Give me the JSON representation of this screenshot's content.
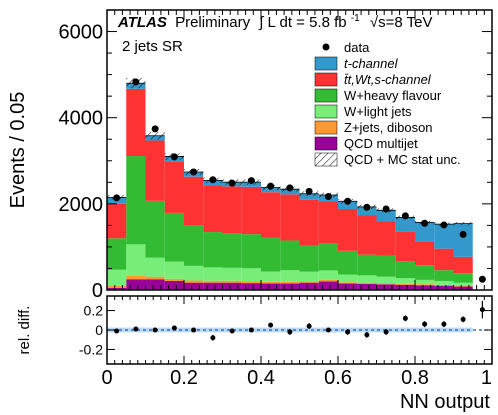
{
  "chart_data": [
    {
      "type": "area",
      "title": "",
      "header": {
        "atlas": "ATLAS",
        "preliminary": "Preliminary",
        "lumi_prefix": "∫ L dt = 5.8 fb",
        "lumi_sup": "-1",
        "energy": "√s=8 TeV"
      },
      "region_label": "2 jets SR",
      "xlabel": "",
      "ylabel": "Events / 0.05",
      "xlim": [
        0,
        1
      ],
      "ylim": [
        0,
        6500
      ],
      "yticks": [
        0,
        2000,
        4000,
        6000
      ],
      "ytick_labels": [
        "0",
        "2000",
        "4000",
        "6000"
      ],
      "x_edges": [
        0,
        0.05,
        0.1,
        0.15,
        0.2,
        0.25,
        0.3,
        0.35,
        0.4,
        0.45,
        0.5,
        0.55,
        0.6,
        0.65,
        0.7,
        0.75,
        0.8,
        0.85,
        0.9,
        0.95,
        1.0
      ],
      "stack_order_bottom_to_top": [
        "QCD multijet",
        "Z+jets, diboson",
        "W+light jets",
        "W+heavy flavour",
        "tt,Wt,s-channel",
        "t-channel"
      ],
      "series": [
        {
          "name": "t-channel",
          "color": "#3399cc",
          "values": [
            150,
            130,
            110,
            110,
            110,
            110,
            100,
            110,
            110,
            120,
            140,
            150,
            180,
            190,
            260,
            330,
            450,
            570,
            770,
            0
          ]
        },
        {
          "name": "t̄t,Wt,s-channel",
          "color": "#ff3333",
          "values": [
            800,
            1560,
            1400,
            1200,
            1130,
            1090,
            1090,
            1100,
            1060,
            1070,
            1070,
            980,
            970,
            920,
            790,
            690,
            540,
            500,
            380,
            0
          ]
        },
        {
          "name": "W+heavy flavour",
          "color": "#33bb33",
          "values": [
            730,
            2050,
            1320,
            1130,
            940,
            820,
            800,
            790,
            780,
            690,
            600,
            620,
            550,
            480,
            490,
            390,
            340,
            250,
            220,
            0
          ]
        },
        {
          "name": "W+light jets",
          "color": "#77ee77",
          "values": [
            370,
            720,
            440,
            400,
            340,
            310,
            300,
            300,
            240,
            270,
            220,
            220,
            180,
            170,
            150,
            130,
            100,
            90,
            70,
            0
          ]
        },
        {
          "name": "Z+jets, diboson",
          "color": "#ff9933",
          "values": [
            50,
            90,
            60,
            50,
            50,
            45,
            45,
            45,
            40,
            40,
            35,
            35,
            30,
            30,
            30,
            25,
            25,
            20,
            20,
            0
          ]
        },
        {
          "name": "QCD multijet",
          "color": "#990099",
          "values": [
            50,
            250,
            250,
            210,
            170,
            170,
            170,
            160,
            150,
            150,
            170,
            200,
            150,
            140,
            130,
            120,
            110,
            100,
            80,
            0
          ]
        }
      ],
      "data": {
        "name": "data",
        "x": [
          0.025,
          0.075,
          0.125,
          0.175,
          0.225,
          0.275,
          0.325,
          0.375,
          0.425,
          0.475,
          0.525,
          0.575,
          0.625,
          0.675,
          0.725,
          0.775,
          0.825,
          0.875,
          0.925,
          0.975
        ],
        "y": [
          2140,
          4830,
          3740,
          3090,
          2740,
          2560,
          2480,
          2540,
          2410,
          2370,
          2290,
          2170,
          2060,
          1920,
          1880,
          1720,
          1550,
          1510,
          1290,
          250
        ],
        "err": [
          46,
          70,
          61,
          56,
          52,
          51,
          50,
          50,
          49,
          49,
          48,
          47,
          45,
          44,
          43,
          41,
          39,
          39,
          36,
          16
        ]
      },
      "uncertainty": {
        "name": "QCD + MC stat unc.",
        "hatch": true,
        "relative": 0.025
      },
      "legend": {
        "placement": "top-right",
        "entries": [
          {
            "label": "data",
            "style": "marker"
          },
          {
            "label": "t-channel",
            "style": "fill",
            "color": "#3399cc"
          },
          {
            "label": "t̄t,Wt,s-channel",
            "style": "fill",
            "color": "#ff3333"
          },
          {
            "label": "W+heavy flavour",
            "style": "fill",
            "color": "#33bb33"
          },
          {
            "label": "W+light jets",
            "style": "fill",
            "color": "#77ee77"
          },
          {
            "label": "Z+jets, diboson",
            "style": "fill",
            "color": "#ff9933"
          },
          {
            "label": "QCD multijet",
            "style": "fill",
            "color": "#990099"
          },
          {
            "label": "QCD + MC stat unc.",
            "style": "hatch"
          }
        ]
      }
    },
    {
      "type": "scatter",
      "title": "",
      "xlabel": "NN output",
      "ylabel": "rel. diff.",
      "xlim": [
        0,
        1
      ],
      "ylim": [
        -0.35,
        0.35
      ],
      "xticks": [
        0,
        0.2,
        0.4,
        0.6,
        0.8,
        1
      ],
      "xtick_labels": [
        "0",
        "0.2",
        "0.4",
        "0.6",
        "0.8",
        "1"
      ],
      "yticks": [
        -0.2,
        0,
        0.2
      ],
      "ytick_labels": [
        "-0.2",
        "0",
        "0.2"
      ],
      "band_color": "#bcd9f2",
      "x": [
        0.025,
        0.075,
        0.125,
        0.175,
        0.225,
        0.275,
        0.325,
        0.375,
        0.425,
        0.475,
        0.525,
        0.575,
        0.625,
        0.675,
        0.725,
        0.775,
        0.825,
        0.875,
        0.925,
        0.975
      ],
      "y": [
        -0.01,
        0.01,
        0.0,
        0.02,
        0.0,
        -0.08,
        -0.01,
        0.0,
        0.05,
        -0.02,
        0.04,
        0.0,
        -0.02,
        -0.05,
        -0.02,
        0.12,
        0.06,
        0.06,
        0.11,
        0.21
      ],
      "err": [
        0.02,
        0.02,
        0.02,
        0.02,
        0.02,
        0.03,
        0.02,
        0.02,
        0.02,
        0.03,
        0.03,
        0.02,
        0.03,
        0.03,
        0.03,
        0.03,
        0.03,
        0.03,
        0.03,
        0.09
      ]
    }
  ]
}
